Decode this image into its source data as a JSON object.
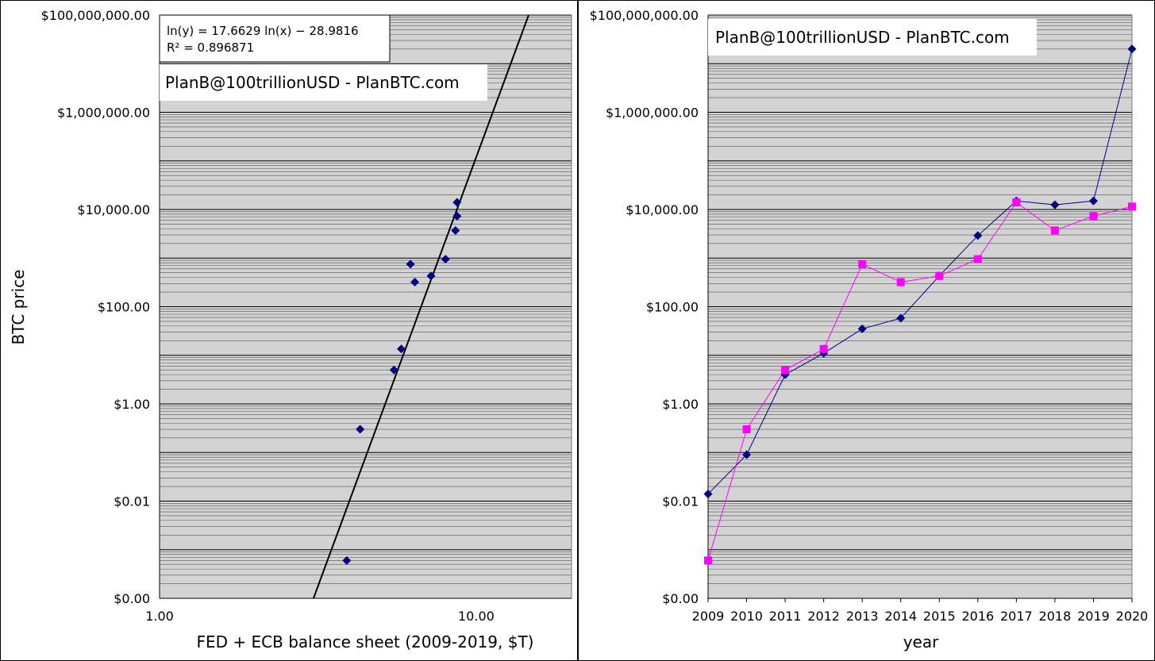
{
  "chart_data": [
    {
      "type": "scatter",
      "title": "",
      "xlabel": "FED + ECB balance sheet (2009-2019, $T)",
      "ylabel": "BTC price",
      "x_scale": "log",
      "y_scale": "log",
      "xlim": [
        1,
        20
      ],
      "ylim": [
        0.0001,
        100000000
      ],
      "x_ticks": [
        1,
        10
      ],
      "x_tick_labels": [
        "1.00",
        "10.00"
      ],
      "y_ticks": [
        0.0001,
        0.01,
        1,
        100,
        10000,
        1000000,
        100000000
      ],
      "y_tick_labels": [
        "$0.00",
        "$0.01",
        "$1.00",
        "$100.00",
        "$10,000.00",
        "$1,000,000.00",
        "$100,000,000.00"
      ],
      "grid": true,
      "series": [
        {
          "marker": "diamond",
          "color": "#000080",
          "points": [
            {
              "x": 3.9,
              "y": 0.0006
            },
            {
              "x": 4.3,
              "y": 0.3
            },
            {
              "x": 5.5,
              "y": 5
            },
            {
              "x": 5.8,
              "y": 13.5
            },
            {
              "x": 6.2,
              "y": 750
            },
            {
              "x": 6.4,
              "y": 320
            },
            {
              "x": 7.2,
              "y": 430
            },
            {
              "x": 8.0,
              "y": 950
            },
            {
              "x": 8.6,
              "y": 3700
            },
            {
              "x": 8.7,
              "y": 7300
            },
            {
              "x": 8.7,
              "y": 14000
            }
          ]
        }
      ],
      "trendline": {
        "type": "power",
        "equation_label": "ln(y) = 17.6629 ln(x) − 28.9816",
        "r2_label": "R² = 0.896871",
        "a": 17.6629,
        "b": -28.9816,
        "color": "#000000"
      },
      "annotation": "PlanB@100trillionUSD  -  PlanBTC.com"
    },
    {
      "type": "line",
      "title": "",
      "xlabel": "year",
      "ylabel": "",
      "y_scale": "log",
      "ylim": [
        0.0001,
        100000000
      ],
      "categories": [
        "2009",
        "2010",
        "2011",
        "2012",
        "2013",
        "2014",
        "2015",
        "2016",
        "2017",
        "2018",
        "2019",
        "2020"
      ],
      "y_ticks": [
        0.0001,
        0.01,
        1,
        100,
        10000,
        1000000,
        100000000
      ],
      "y_tick_labels": [
        "$0.00",
        "$0.01",
        "$1.00",
        "$100.00",
        "$10,000.00",
        "$1,000,000.00",
        "$100,000,000.00"
      ],
      "grid": true,
      "series": [
        {
          "marker": "diamond",
          "color": "#000080",
          "values": [
            0.014,
            0.09,
            4,
            11,
            35,
            58,
            430,
            2900,
            15000,
            12500,
            15000,
            20000000
          ]
        },
        {
          "marker": "square",
          "color": "#ff00ff",
          "values": [
            0.0006,
            0.3,
            5,
            13.5,
            750,
            320,
            430,
            950,
            14000,
            3700,
            7300,
            11500
          ]
        }
      ],
      "annotation": "PlanB@100trillionUSD  -  PlanBTC.com"
    }
  ]
}
